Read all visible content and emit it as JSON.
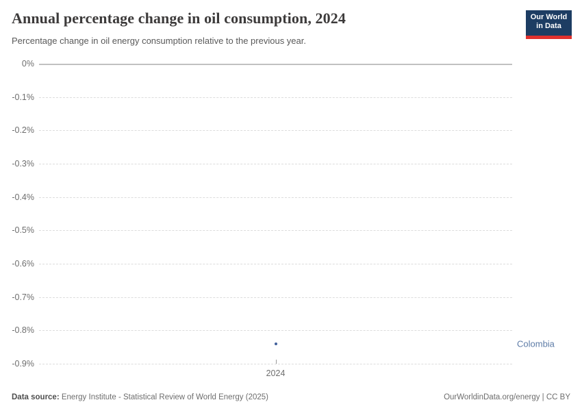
{
  "header": {
    "title": "Annual percentage change in oil consumption, 2024",
    "subtitle": "Percentage change in oil energy consumption relative to the previous year.",
    "logo": {
      "line1": "Our World",
      "line2": "in Data"
    }
  },
  "chart_data": {
    "type": "scatter",
    "title": "Annual percentage change in oil consumption, 2024",
    "x": [
      2024
    ],
    "xtick_labels": [
      "2024"
    ],
    "series": [
      {
        "name": "Colombia",
        "values": [
          -0.84
        ]
      }
    ],
    "entity_label": "Colombia",
    "xlabel": "",
    "ylabel": "",
    "ylim": [
      -0.9,
      0
    ],
    "yticks": [
      0,
      -0.1,
      -0.2,
      -0.3,
      -0.4,
      -0.5,
      -0.6,
      -0.7,
      -0.8,
      -0.9
    ],
    "ytick_labels": [
      "0%",
      "-0.1%",
      "-0.2%",
      "-0.3%",
      "-0.4%",
      "-0.5%",
      "-0.6%",
      "-0.7%",
      "-0.8%",
      "-0.9%"
    ],
    "grid": "horizontal-dashed",
    "legend_position": "right-entity-label",
    "colors": {
      "point": "#41619c",
      "entity_label": "#5e7ca7",
      "gridline": "#dcdcdc",
      "zero_line": "#c0c0c0"
    }
  },
  "footer": {
    "source_label": "Data source:",
    "source_text": " Energy Institute - Statistical Review of World Energy (2025)",
    "credit": "OurWorldinData.org/energy | CC BY"
  }
}
